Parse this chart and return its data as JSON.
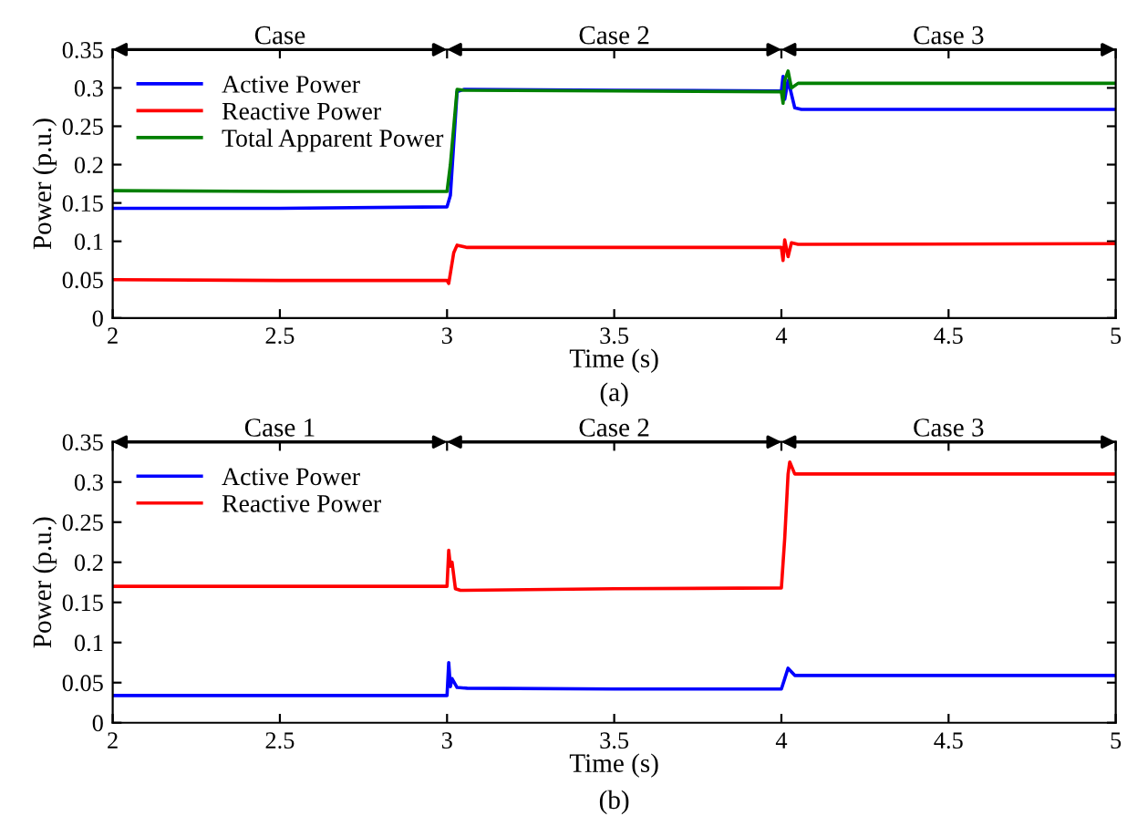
{
  "chart_data": [
    {
      "type": "line",
      "xlabel": "Time (s)",
      "ylabel": "Power (p.u.)",
      "annotations": [
        "(a)",
        "Case",
        "Case 2",
        "Case 3"
      ],
      "xlim": [
        2,
        5
      ],
      "ylim": [
        0,
        0.35
      ],
      "xticks": [
        2,
        2.5,
        3,
        3.5,
        4,
        4.5,
        5
      ],
      "yticks": [
        0,
        0.05,
        0.1,
        0.15,
        0.2,
        0.25,
        0.3,
        0.35
      ],
      "grid": false,
      "legend": "top left",
      "series": [
        {
          "name": "Active Power",
          "color": "#0000ff",
          "x": [
            2,
            2.5,
            3.0,
            3.01,
            3.03,
            3.05,
            3.5,
            4.0,
            4.005,
            4.01,
            4.02,
            4.04,
            4.06,
            5
          ],
          "values": [
            0.143,
            0.143,
            0.145,
            0.16,
            0.295,
            0.298,
            0.297,
            0.296,
            0.315,
            0.285,
            0.31,
            0.274,
            0.272,
            0.272
          ]
        },
        {
          "name": "Reactive Power",
          "color": "#ff0000",
          "x": [
            2,
            2.5,
            3.0,
            3.005,
            3.02,
            3.03,
            3.06,
            3.5,
            4.0,
            4.005,
            4.01,
            4.02,
            4.03,
            4.05,
            5
          ],
          "values": [
            0.05,
            0.049,
            0.049,
            0.045,
            0.085,
            0.095,
            0.092,
            0.092,
            0.092,
            0.075,
            0.102,
            0.08,
            0.098,
            0.096,
            0.097
          ]
        },
        {
          "name": "Total Apparent Power",
          "color": "#008000",
          "x": [
            2,
            2.5,
            3.0,
            3.01,
            3.03,
            3.05,
            3.5,
            4.0,
            4.005,
            4.01,
            4.02,
            4.03,
            4.05,
            5
          ],
          "values": [
            0.166,
            0.165,
            0.165,
            0.2,
            0.298,
            0.297,
            0.296,
            0.295,
            0.28,
            0.31,
            0.322,
            0.3,
            0.306,
            0.306
          ]
        }
      ]
    },
    {
      "type": "line",
      "xlabel": "Time (s)",
      "ylabel": "Power (p.u.)",
      "annotations": [
        "(b)",
        "Case 1",
        "Case 2",
        "Case 3"
      ],
      "xlim": [
        2,
        5
      ],
      "ylim": [
        0,
        0.35
      ],
      "xticks": [
        2,
        2.5,
        3,
        3.5,
        4,
        4.5,
        5
      ],
      "yticks": [
        0,
        0.05,
        0.1,
        0.15,
        0.2,
        0.25,
        0.3,
        0.35
      ],
      "grid": false,
      "legend": "top left",
      "series": [
        {
          "name": "Active Power",
          "color": "#0000ff",
          "x": [
            2,
            3.0,
            3.005,
            3.01,
            3.015,
            3.03,
            3.06,
            3.5,
            4.0,
            4.01,
            4.02,
            4.04,
            5
          ],
          "values": [
            0.034,
            0.034,
            0.075,
            0.045,
            0.055,
            0.044,
            0.043,
            0.042,
            0.042,
            0.055,
            0.068,
            0.059,
            0.059
          ]
        },
        {
          "name": "Reactive Power",
          "color": "#ff0000",
          "x": [
            2,
            3.0,
            3.005,
            3.01,
            3.015,
            3.025,
            3.04,
            3.5,
            4.0,
            4.01,
            4.02,
            4.025,
            4.04,
            5
          ],
          "values": [
            0.17,
            0.17,
            0.215,
            0.195,
            0.2,
            0.167,
            0.165,
            0.167,
            0.168,
            0.23,
            0.31,
            0.325,
            0.31,
            0.31
          ]
        }
      ]
    }
  ]
}
